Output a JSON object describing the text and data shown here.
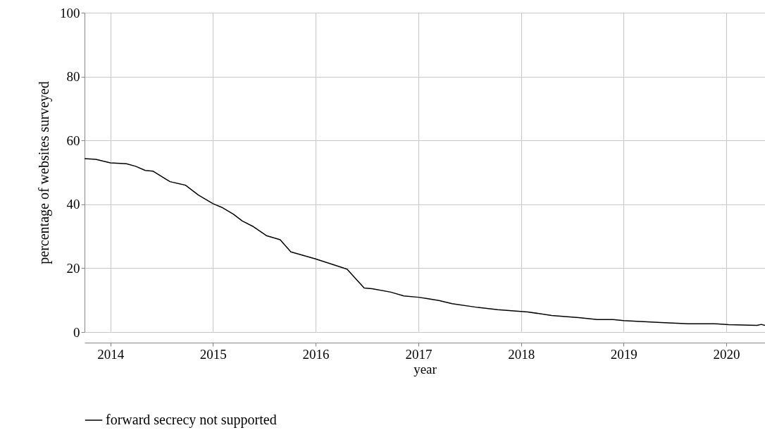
{
  "chart_data": {
    "type": "line",
    "xlabel": "year",
    "ylabel": "percentage of websites surveyed",
    "x": [
      "2013-10-01",
      "2013-11-10",
      "2014-01-01",
      "2014-02-27",
      "2014-04-01",
      "2014-05-05",
      "2014-06-01",
      "2014-08-01",
      "2014-09-25",
      "2014-11-10",
      "2015-01-01",
      "2015-02-05",
      "2015-03-15",
      "2015-04-15",
      "2015-05-25",
      "2015-07-10",
      "2015-08-28",
      "2015-10-05",
      "2016-01-01",
      "2016-03-01",
      "2016-04-22",
      "2016-06-22",
      "2016-07-20",
      "2016-09-25",
      "2016-11-10",
      "2017-01-01",
      "2017-02-01",
      "2017-03-15",
      "2017-05-01",
      "2017-08-01",
      "2017-10-10",
      "2018-01-25",
      "2018-04-20",
      "2018-07-25",
      "2018-09-30",
      "2018-11-25",
      "2019-01-01",
      "2019-05-15",
      "2019-08-20",
      "2019-11-20",
      "2020-01-10",
      "2020-04-20",
      "2020-05-05",
      "2020-05-18"
    ],
    "series": [
      {
        "name": "forward secrecy not supported",
        "color": "#000000",
        "values": [
          54.3,
          54.1,
          53.0,
          52.7,
          51.9,
          50.6,
          50.4,
          47.1,
          46.0,
          42.9,
          40.2,
          38.9,
          36.9,
          34.8,
          33.0,
          30.2,
          28.9,
          25.1,
          22.9,
          21.2,
          19.7,
          13.8,
          13.6,
          12.5,
          11.3,
          10.9,
          10.5,
          9.9,
          8.9,
          7.7,
          7.0,
          6.3,
          5.2,
          4.5,
          3.9,
          3.9,
          3.6,
          3.0,
          2.6,
          2.6,
          2.3,
          2.1,
          2.4,
          2.1
        ]
      }
    ],
    "xlim": [
      "2013-10-01",
      "2020-05-18"
    ],
    "xticks": [
      "2014",
      "2015",
      "2016",
      "2017",
      "2018",
      "2019",
      "2020"
    ],
    "ylim": [
      0,
      100
    ],
    "yticks": [
      0,
      20,
      40,
      60,
      80,
      100
    ],
    "grid": true,
    "legend": "bottom",
    "line_style": "solid",
    "marker": "none"
  }
}
